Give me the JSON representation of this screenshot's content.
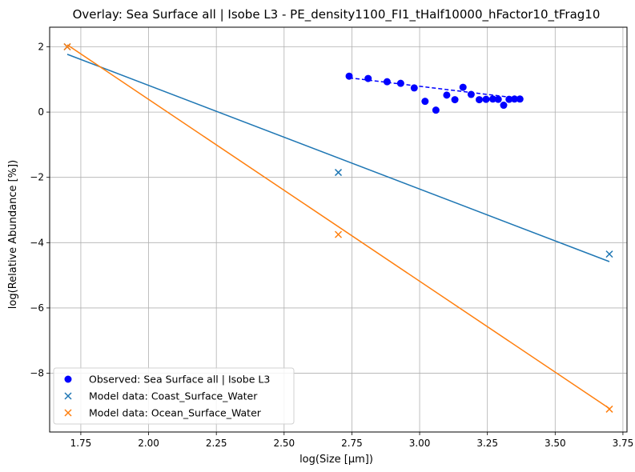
{
  "chart_data": {
    "type": "scatter",
    "title": "Overlay: Sea Surface all | Isobe L3 - PE_density1100_FI1_tHalf10000_hFactor10_tFrag10",
    "xlabel": "log(Size [μm])",
    "ylabel": "log(Relative Abundance [%])",
    "xlim": [
      1.635,
      3.765
    ],
    "ylim": [
      -9.8,
      2.6
    ],
    "xticks": [
      1.75,
      2.0,
      2.25,
      2.5,
      2.75,
      3.0,
      3.25,
      3.5,
      3.75
    ],
    "xtick_labels": [
      "1.75",
      "2.00",
      "2.25",
      "2.50",
      "2.75",
      "3.00",
      "3.25",
      "3.50",
      "3.75"
    ],
    "yticks": [
      -8,
      -6,
      -4,
      -2,
      0,
      2
    ],
    "ytick_labels": [
      "−8",
      "−6",
      "−4",
      "−2",
      "0",
      "2"
    ],
    "grid": true,
    "legend_position": "lower-left",
    "observed": {
      "name": "Observed: Sea Surface all | Isobe L3",
      "color": "#0000ff",
      "x": [
        2.74,
        2.81,
        2.88,
        2.93,
        2.98,
        3.02,
        3.06,
        3.1,
        3.13,
        3.16,
        3.19,
        3.22,
        3.245,
        3.27,
        3.29,
        3.31,
        3.33,
        3.35,
        3.37
      ],
      "y": [
        1.1,
        1.03,
        0.93,
        0.88,
        0.74,
        0.33,
        0.06,
        0.52,
        0.38,
        0.76,
        0.54,
        0.38,
        0.39,
        0.4,
        0.39,
        0.21,
        0.39,
        0.4,
        0.4
      ],
      "fit": {
        "x": [
          2.74,
          3.37
        ],
        "y": [
          1.05,
          0.42
        ],
        "color": "#0000ff",
        "style": "dashed"
      }
    },
    "series": [
      {
        "name": "Model data: Coast_Surface_Water",
        "color": "#1f77b4",
        "x": [
          1.7,
          2.7,
          3.7
        ],
        "y": [
          2.0,
          -1.85,
          -4.35
        ],
        "fit": {
          "x": [
            1.7,
            3.7
          ],
          "y": [
            1.77,
            -4.58
          ]
        }
      },
      {
        "name": "Model data: Ocean_Surface_Water",
        "color": "#ff7f0e",
        "x": [
          1.7,
          2.7,
          3.7
        ],
        "y": [
          2.0,
          -3.75,
          -9.1
        ],
        "fit": {
          "x": [
            1.7,
            3.7
          ],
          "y": [
            2.06,
            -9.08
          ]
        }
      }
    ]
  }
}
